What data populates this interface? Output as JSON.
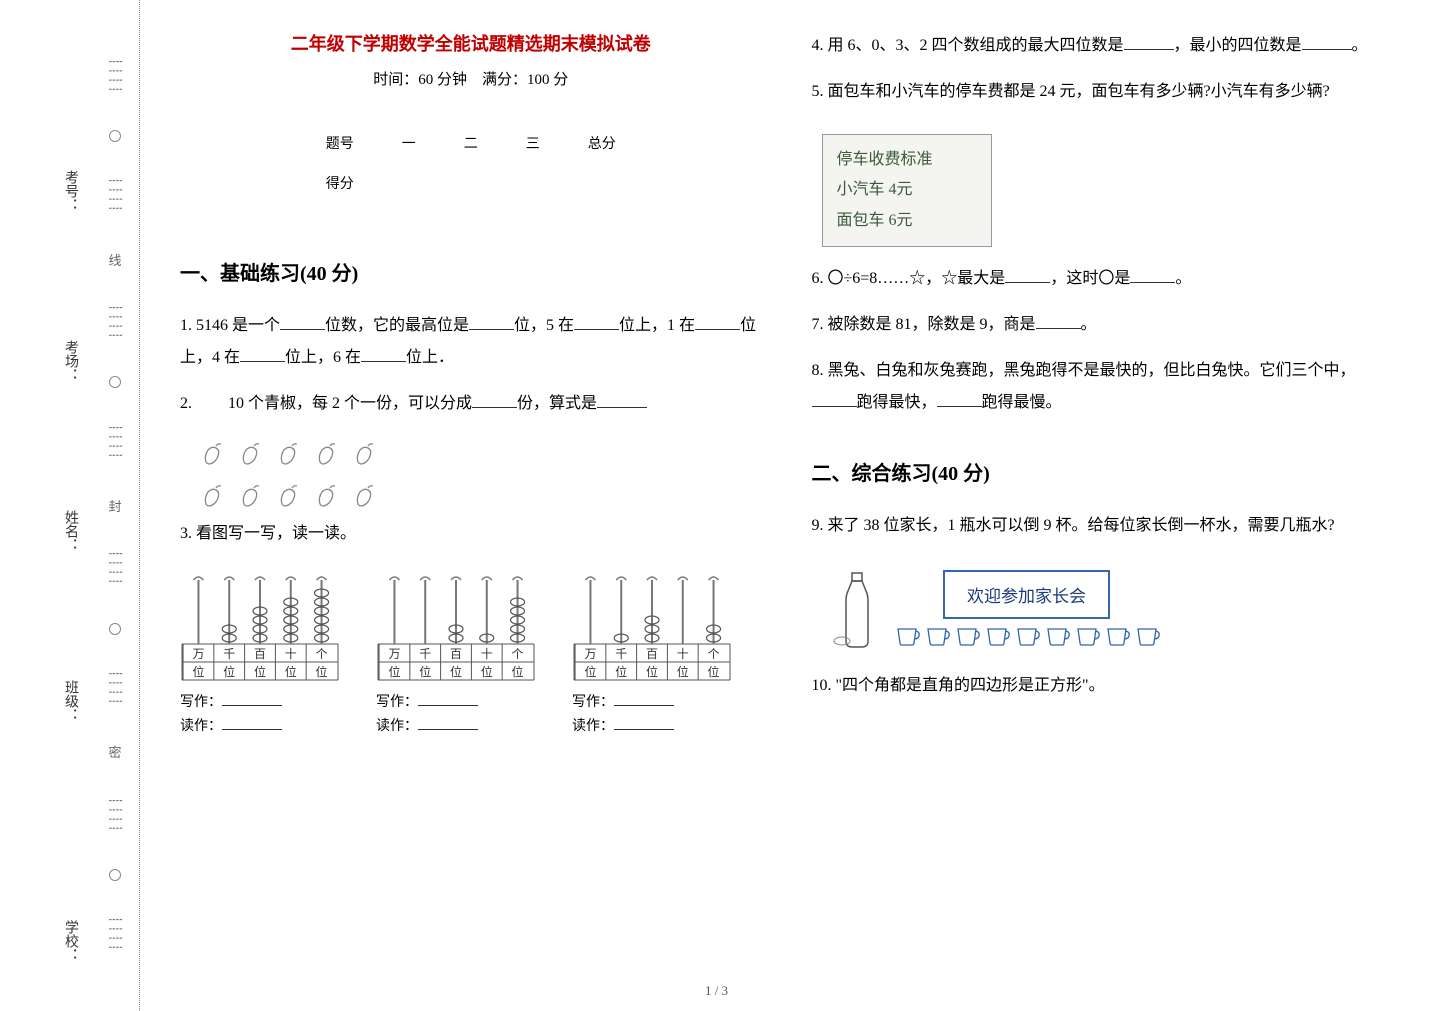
{
  "binding": {
    "labels": {
      "xuexiao": "学校：",
      "banji": "班级：",
      "xingming": "姓名：",
      "kaochang": "考场：",
      "kaohao": "考号："
    },
    "seal_chars": [
      "密",
      "封",
      "线"
    ]
  },
  "header": {
    "title": "二年级下学期数学全能试题精选期末模拟试卷",
    "subtitle": "时间：60 分钟　满分：100 分"
  },
  "score_table": {
    "headers": [
      "题号",
      "一",
      "二",
      "三",
      "总分"
    ],
    "row_label": "得分"
  },
  "section1": {
    "title": "一、基础练习(40 分)"
  },
  "q1": {
    "prefix": "1. 5146 是一个",
    "t1": "位数，它的最高位是",
    "t2": "位，5 在",
    "t3": "位上，1 在",
    "t4": "位上，4 在",
    "t5": "位上，6 在",
    "t6": "位上．"
  },
  "q2": {
    "prefix": "2. 　　10 个青椒，每 2 个一份，可以分成",
    "t1": "份，算式是"
  },
  "q3": {
    "title": "3. 看图写一写，读一读。",
    "place_labels": [
      "万位",
      "千位",
      "百位",
      "十位",
      "个位"
    ],
    "write_label": "写作：",
    "read_label": "读作：",
    "configs": [
      {
        "beads": [
          0,
          2,
          4,
          5,
          6
        ]
      },
      {
        "beads": [
          0,
          0,
          2,
          1,
          5
        ]
      },
      {
        "beads": [
          0,
          1,
          3,
          0,
          2
        ]
      }
    ]
  },
  "q4": {
    "prefix": "4. 用 6、0、3、2 四个数组成的最大四位数是",
    "t1": "，最小的四位数是",
    "t2": "。"
  },
  "q5": {
    "text": "5. 面包车和小汽车的停车费都是 24 元，面包车有多少辆?小汽车有多少辆?",
    "box": {
      "l1": "停车收费标准",
      "l2": "小汽车  4元",
      "l3": "面包车  6元"
    }
  },
  "q6": {
    "prefix": "6. 〇÷6=8……☆，☆最大是",
    "t1": "，这时〇是",
    "t2": "。"
  },
  "q7": {
    "prefix": "7. 被除数是 81，除数是 9，商是",
    "t1": "。"
  },
  "q8": {
    "prefix": "8. 黑兔、白兔和灰兔赛跑，黑兔跑得不是最快的，但比白兔快。它们三个中，",
    "t1": "跑得最快，",
    "t2": "跑得最慢。"
  },
  "section2": {
    "title": "二、综合练习(40 分)"
  },
  "q9": {
    "text": "9. 来了 38 位家长，1 瓶水可以倒 9 杯。给每位家长倒一杯水，需要几瓶水?",
    "banner": "欢迎参加家长会",
    "cup_count": 9
  },
  "q10": {
    "text": "10. \"四个角都是直角的四边形是正方形\"。"
  },
  "page_num": "1 / 3",
  "colors": {
    "title": "#c00000",
    "seal": "#666666",
    "banner_border": "#3366aa",
    "banner_text": "#1a3a7a",
    "fee_text": "#3a5a3a"
  }
}
